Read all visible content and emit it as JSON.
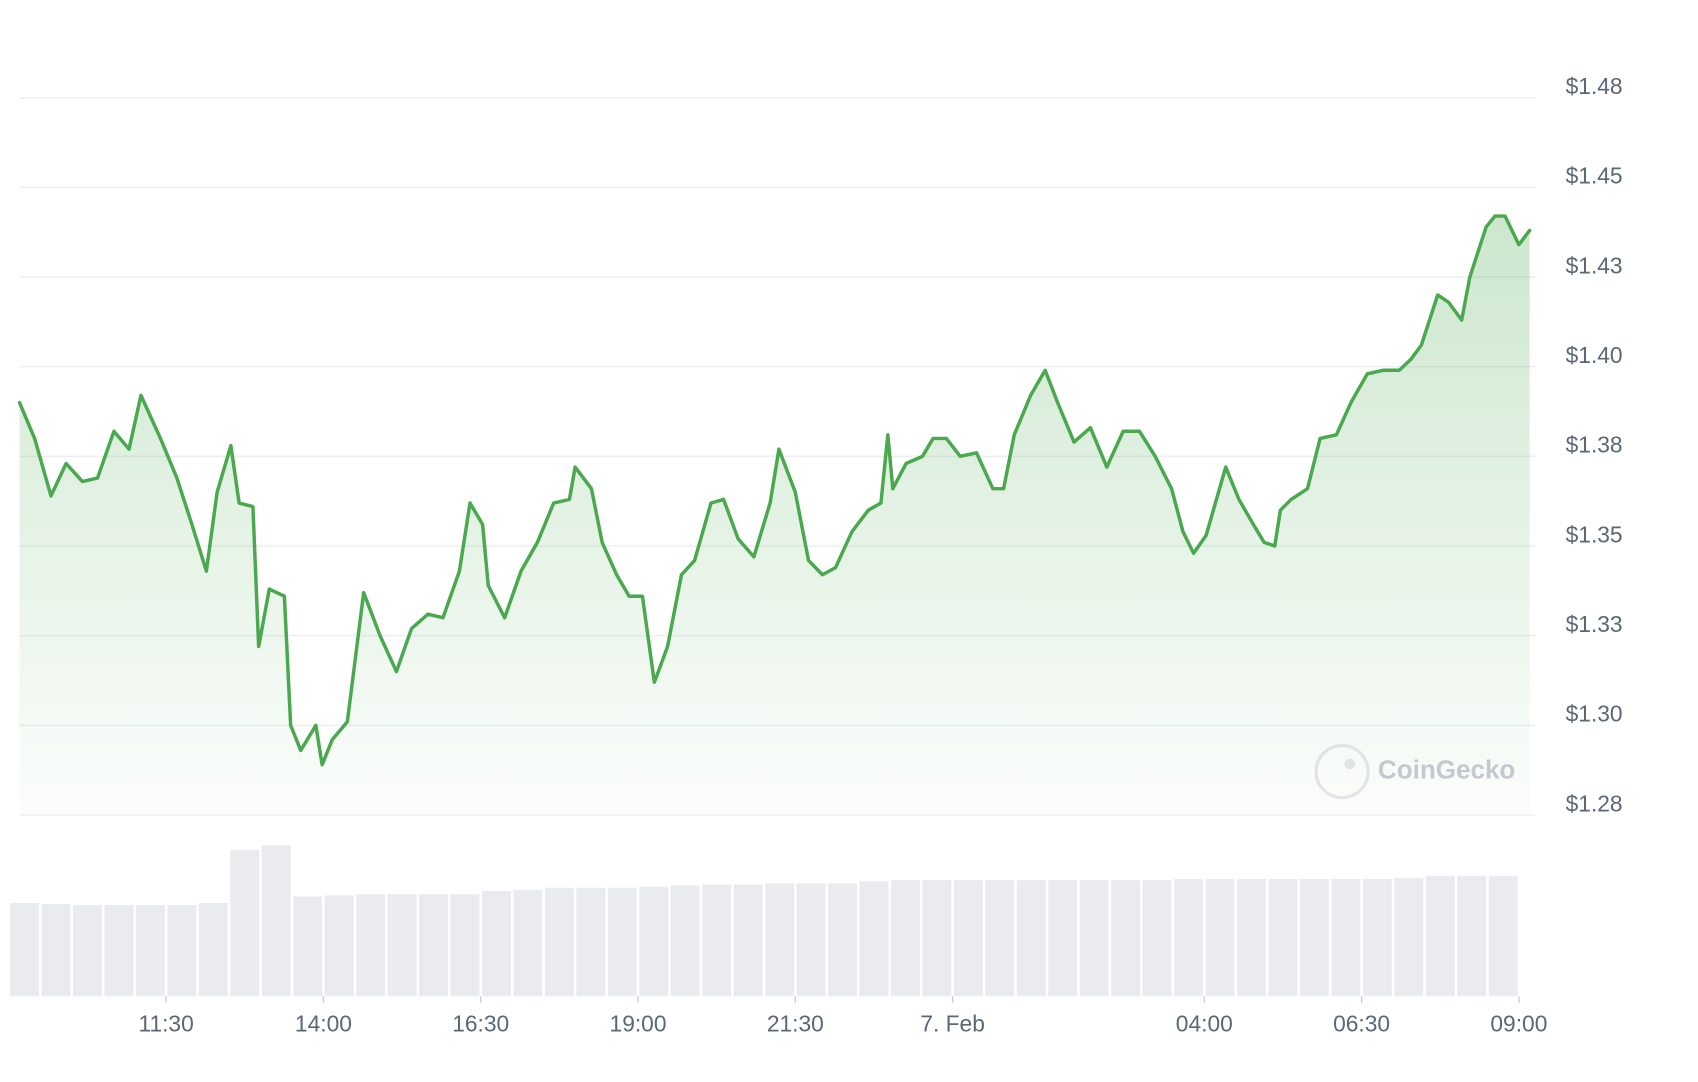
{
  "chart_data": {
    "type": "line",
    "color": "#4aa84e",
    "area": true,
    "grid": true,
    "watermark": "CoinGecko",
    "xlim": [
      9.17,
      33.26
    ],
    "xticks": [
      {
        "value": 11.5,
        "label": "11:30"
      },
      {
        "value": 14,
        "label": "14:00"
      },
      {
        "value": 16.5,
        "label": "16:30"
      },
      {
        "value": 19,
        "label": "19:00"
      },
      {
        "value": 21.5,
        "label": "21:30"
      },
      {
        "value": 24,
        "label": "7. Feb"
      },
      {
        "value": 28,
        "label": "04:00"
      },
      {
        "value": 30.5,
        "label": "06:30"
      },
      {
        "value": 33,
        "label": "09:00"
      }
    ],
    "ylim": [
      1.275,
      1.485
    ],
    "yticks": [
      {
        "value": 1.275,
        "label": "$1.28"
      },
      {
        "value": 1.3,
        "label": "$1.30"
      },
      {
        "value": 1.325,
        "label": "$1.33"
      },
      {
        "value": 1.35,
        "label": "$1.35"
      },
      {
        "value": 1.375,
        "label": "$1.38"
      },
      {
        "value": 1.4,
        "label": "$1.40"
      },
      {
        "value": 1.425,
        "label": "$1.43"
      },
      {
        "value": 1.45,
        "label": "$1.45"
      },
      {
        "value": 1.475,
        "label": "$1.48"
      }
    ],
    "x": [
      9.17,
      9.41,
      9.67,
      9.91,
      10.17,
      10.41,
      10.67,
      10.91,
      11.1,
      11.41,
      11.67,
      11.91,
      12.14,
      12.31,
      12.53,
      12.66,
      12.88,
      12.97,
      13.14,
      13.38,
      13.48,
      13.64,
      13.88,
      13.98,
      14.14,
      14.38,
      14.64,
      14.9,
      15.16,
      15.4,
      15.66,
      15.9,
      16.16,
      16.33,
      16.53,
      16.62,
      16.88,
      17.14,
      17.4,
      17.66,
      17.91,
      18.0,
      18.26,
      18.43,
      18.66,
      18.86,
      19.07,
      19.26,
      19.47,
      19.69,
      19.9,
      20.16,
      20.36,
      20.59,
      20.84,
      21.1,
      21.24,
      21.5,
      21.71,
      21.93,
      22.14,
      22.4,
      22.66,
      22.86,
      22.97,
      23.05,
      23.26,
      23.52,
      23.69,
      23.9,
      24.12,
      24.38,
      24.64,
      24.81,
      24.98,
      25.24,
      25.47,
      25.67,
      25.93,
      26.19,
      26.45,
      26.71,
      26.97,
      27.22,
      27.48,
      27.66,
      27.83,
      28.03,
      28.34,
      28.55,
      28.78,
      28.95,
      29.12,
      29.21,
      29.38,
      29.64,
      29.84,
      30.1,
      30.33,
      30.59,
      30.84,
      31.1,
      31.28,
      31.45,
      31.71,
      31.88,
      32.09,
      32.22,
      32.48,
      32.62,
      32.78,
      33.0,
      33.17
    ],
    "values": [
      1.39,
      1.38,
      1.364,
      1.373,
      1.368,
      1.369,
      1.382,
      1.377,
      1.392,
      1.38,
      1.369,
      1.356,
      1.343,
      1.365,
      1.378,
      1.362,
      1.361,
      1.322,
      1.338,
      1.336,
      1.3,
      1.293,
      1.3,
      1.289,
      1.296,
      1.301,
      1.337,
      1.325,
      1.315,
      1.327,
      1.331,
      1.33,
      1.343,
      1.362,
      1.356,
      1.339,
      1.33,
      1.343,
      1.351,
      1.362,
      1.363,
      1.372,
      1.366,
      1.351,
      1.342,
      1.336,
      1.336,
      1.312,
      1.322,
      1.342,
      1.346,
      1.362,
      1.363,
      1.352,
      1.347,
      1.362,
      1.377,
      1.365,
      1.346,
      1.342,
      1.344,
      1.354,
      1.36,
      1.362,
      1.381,
      1.366,
      1.373,
      1.375,
      1.38,
      1.38,
      1.375,
      1.376,
      1.366,
      1.366,
      1.381,
      1.392,
      1.399,
      1.39,
      1.379,
      1.383,
      1.372,
      1.382,
      1.382,
      1.375,
      1.366,
      1.354,
      1.348,
      1.353,
      1.372,
      1.363,
      1.356,
      1.351,
      1.35,
      1.36,
      1.363,
      1.366,
      1.38,
      1.381,
      1.39,
      1.398,
      1.399,
      1.399,
      1.402,
      1.406,
      1.42,
      1.418,
      1.413,
      1.425,
      1.439,
      1.442,
      1.442,
      1.434,
      1.438
    ],
    "volume": {
      "color": "#e9ebef",
      "x": [
        9.25,
        9.75,
        10.25,
        10.75,
        11.25,
        11.75,
        12.25,
        12.75,
        13.25,
        13.75,
        14.25,
        14.75,
        15.25,
        15.75,
        16.25,
        16.75,
        17.25,
        17.75,
        18.25,
        18.75,
        19.25,
        19.75,
        20.25,
        20.75,
        21.25,
        21.75,
        22.25,
        22.75,
        23.25,
        23.75,
        24.25,
        24.75,
        25.25,
        25.75,
        26.25,
        26.75,
        27.25,
        27.75,
        28.25,
        28.75,
        29.25,
        29.75,
        30.25,
        30.75,
        31.25,
        31.75,
        32.25,
        32.75
      ],
      "values": [
        86,
        85,
        84,
        84,
        84,
        84,
        86,
        135,
        139,
        92,
        93,
        94,
        94,
        94,
        94,
        97,
        98,
        100,
        100,
        100,
        101,
        102,
        103,
        103,
        104,
        104,
        104,
        106,
        107,
        107,
        107,
        107,
        107,
        107,
        107,
        107,
        107,
        108,
        108,
        108,
        108,
        108,
        108,
        108,
        109,
        111,
        111,
        111
      ]
    }
  }
}
